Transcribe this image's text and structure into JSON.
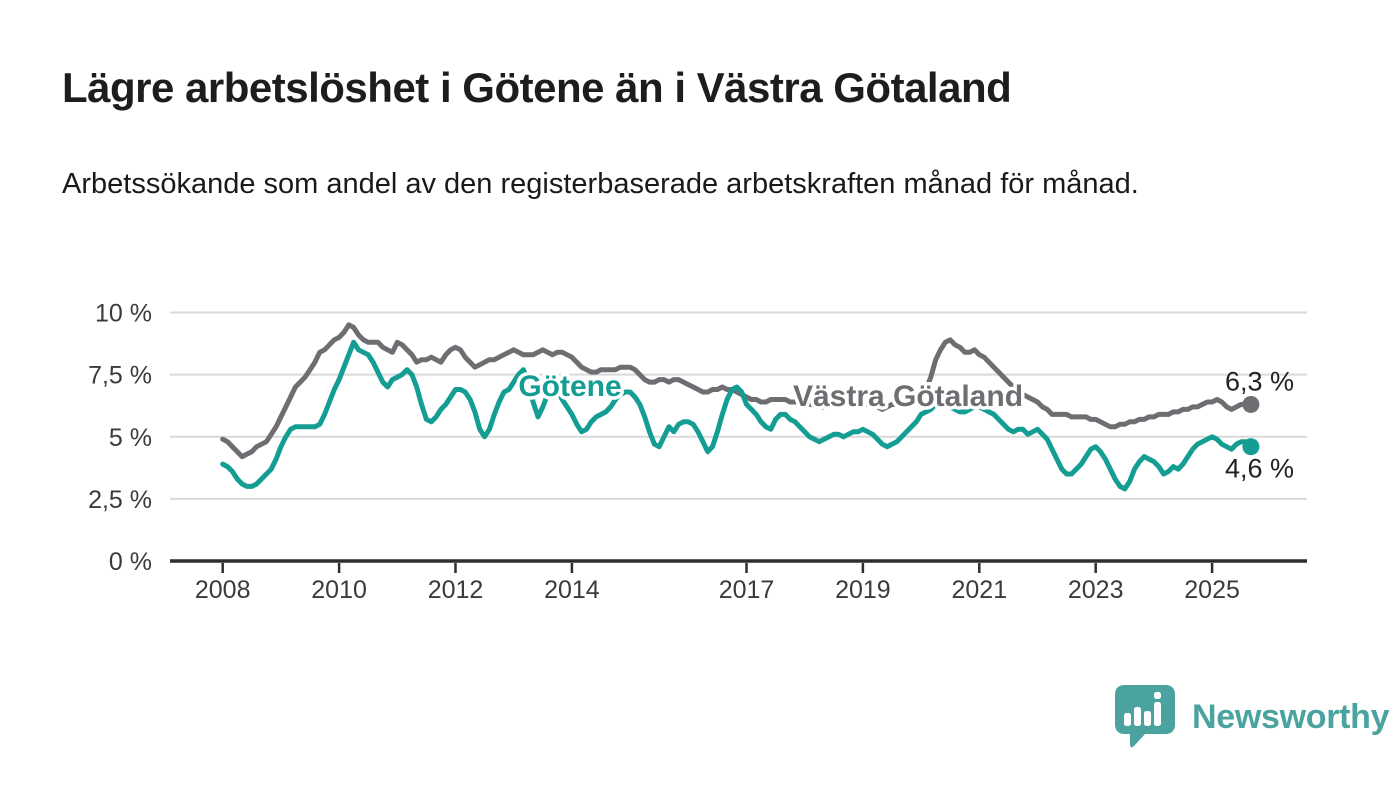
{
  "header": {
    "title": "Lägre arbetslöshet i Götene än i Västra Götaland",
    "subtitle": "Arbetssökande som andel av den registerbaserade arbetskraften månad för månad."
  },
  "chart_data": {
    "type": "line",
    "title": "",
    "xlabel": "",
    "ylabel": "",
    "x_start": "2008-01",
    "x_end": "2025-09",
    "x_frequency": "monthly",
    "ylim": [
      0,
      10.5
    ],
    "grid": "horizontal",
    "y_axis": {
      "ticks": [
        {
          "value": 10,
          "label": "10 %"
        },
        {
          "value": 7.5,
          "label": "7,5 %"
        },
        {
          "value": 5,
          "label": "5 %"
        },
        {
          "value": 2.5,
          "label": "2,5 %"
        },
        {
          "value": 0,
          "label": "0 %"
        }
      ]
    },
    "x_axis": {
      "tick_years": [
        2008,
        2010,
        2012,
        2014,
        2017,
        2019,
        2021,
        2023,
        2025
      ],
      "tick_labels": [
        "2008",
        "2010",
        "2012",
        "2014",
        "2017",
        "2019",
        "2021",
        "2023",
        "2025"
      ]
    },
    "series": [
      {
        "name": "Västra Götaland",
        "color": "#6e6e72",
        "end_label": "6,3 %",
        "end_value": 6.3,
        "values": [
          4.9,
          4.8,
          4.6,
          4.4,
          4.2,
          4.3,
          4.4,
          4.6,
          4.7,
          4.8,
          5.1,
          5.4,
          5.8,
          6.2,
          6.6,
          7.0,
          7.2,
          7.4,
          7.7,
          8.0,
          8.4,
          8.5,
          8.7,
          8.9,
          9.0,
          9.2,
          9.5,
          9.4,
          9.1,
          8.9,
          8.8,
          8.8,
          8.8,
          8.6,
          8.5,
          8.4,
          8.8,
          8.7,
          8.5,
          8.3,
          8.0,
          8.1,
          8.1,
          8.2,
          8.1,
          8.0,
          8.3,
          8.5,
          8.6,
          8.5,
          8.2,
          8.0,
          7.8,
          7.9,
          8.0,
          8.1,
          8.1,
          8.2,
          8.3,
          8.4,
          8.5,
          8.4,
          8.3,
          8.3,
          8.3,
          8.4,
          8.5,
          8.4,
          8.3,
          8.4,
          8.4,
          8.3,
          8.2,
          8.0,
          7.8,
          7.7,
          7.6,
          7.6,
          7.7,
          7.7,
          7.7,
          7.7,
          7.8,
          7.8,
          7.8,
          7.7,
          7.5,
          7.3,
          7.2,
          7.2,
          7.3,
          7.3,
          7.2,
          7.3,
          7.3,
          7.2,
          7.1,
          7.0,
          6.9,
          6.8,
          6.8,
          6.9,
          6.9,
          7.0,
          6.9,
          6.9,
          6.8,
          6.7,
          6.6,
          6.5,
          6.5,
          6.4,
          6.4,
          6.5,
          6.5,
          6.5,
          6.5,
          6.4,
          6.4,
          6.4,
          6.4,
          6.3,
          6.3,
          6.2,
          6.2,
          6.3,
          6.3,
          6.3,
          6.3,
          6.3,
          6.3,
          6.4,
          6.4,
          6.3,
          6.3,
          6.2,
          6.1,
          6.2,
          6.3,
          6.3,
          6.4,
          6.4,
          6.5,
          6.6,
          6.7,
          6.9,
          7.4,
          8.1,
          8.5,
          8.8,
          8.9,
          8.7,
          8.6,
          8.4,
          8.4,
          8.5,
          8.3,
          8.2,
          8.0,
          7.8,
          7.6,
          7.4,
          7.2,
          7.0,
          6.9,
          6.7,
          6.6,
          6.5,
          6.4,
          6.2,
          6.1,
          5.9,
          5.9,
          5.9,
          5.9,
          5.8,
          5.8,
          5.8,
          5.8,
          5.7,
          5.7,
          5.6,
          5.5,
          5.4,
          5.4,
          5.5,
          5.5,
          5.6,
          5.6,
          5.7,
          5.7,
          5.8,
          5.8,
          5.9,
          5.9,
          5.9,
          6.0,
          6.0,
          6.1,
          6.1,
          6.2,
          6.2,
          6.3,
          6.4,
          6.4,
          6.5,
          6.4,
          6.2,
          6.1,
          6.2,
          6.3,
          6.3,
          6.3
        ]
      },
      {
        "name": "Götene",
        "color": "#149d92",
        "end_label": "4,6 %",
        "end_value": 4.6,
        "values": [
          3.9,
          3.8,
          3.6,
          3.3,
          3.1,
          3.0,
          3.0,
          3.1,
          3.3,
          3.5,
          3.7,
          4.1,
          4.6,
          5.0,
          5.3,
          5.4,
          5.4,
          5.4,
          5.4,
          5.4,
          5.5,
          5.9,
          6.4,
          6.9,
          7.3,
          7.8,
          8.3,
          8.8,
          8.5,
          8.4,
          8.3,
          8.0,
          7.6,
          7.2,
          7.0,
          7.3,
          7.4,
          7.5,
          7.7,
          7.5,
          7.0,
          6.3,
          5.7,
          5.6,
          5.8,
          6.1,
          6.3,
          6.6,
          6.9,
          6.9,
          6.8,
          6.5,
          6.0,
          5.3,
          5.0,
          5.3,
          5.9,
          6.4,
          6.8,
          6.9,
          7.2,
          7.5,
          7.7,
          7.2,
          6.4,
          5.8,
          6.2,
          6.7,
          7.0,
          6.9,
          6.5,
          6.2,
          5.9,
          5.5,
          5.2,
          5.3,
          5.6,
          5.8,
          5.9,
          6.0,
          6.2,
          6.5,
          6.7,
          6.8,
          6.8,
          6.6,
          6.3,
          5.8,
          5.2,
          4.7,
          4.6,
          5.0,
          5.4,
          5.2,
          5.5,
          5.6,
          5.6,
          5.5,
          5.2,
          4.8,
          4.4,
          4.6,
          5.2,
          5.9,
          6.5,
          6.9,
          7.0,
          6.8,
          6.3,
          6.1,
          5.9,
          5.6,
          5.4,
          5.3,
          5.7,
          5.9,
          5.9,
          5.7,
          5.6,
          5.4,
          5.2,
          5.0,
          4.9,
          4.8,
          4.9,
          5.0,
          5.1,
          5.1,
          5.0,
          5.1,
          5.2,
          5.2,
          5.3,
          5.2,
          5.1,
          4.9,
          4.7,
          4.6,
          4.7,
          4.8,
          5.0,
          5.2,
          5.4,
          5.6,
          5.9,
          6.0,
          6.1,
          6.3,
          6.3,
          6.3,
          6.2,
          6.1,
          6.0,
          6.0,
          6.1,
          6.2,
          6.2,
          6.1,
          6.0,
          5.9,
          5.7,
          5.5,
          5.3,
          5.2,
          5.3,
          5.3,
          5.1,
          5.2,
          5.3,
          5.1,
          4.9,
          4.5,
          4.1,
          3.7,
          3.5,
          3.5,
          3.7,
          3.9,
          4.2,
          4.5,
          4.6,
          4.4,
          4.1,
          3.7,
          3.3,
          3.0,
          2.9,
          3.2,
          3.7,
          4.0,
          4.2,
          4.1,
          4.0,
          3.8,
          3.5,
          3.6,
          3.8,
          3.7,
          3.9,
          4.2,
          4.5,
          4.7,
          4.8,
          4.9,
          5.0,
          4.9,
          4.7,
          4.6,
          4.5,
          4.7,
          4.8,
          4.8,
          4.6
        ]
      }
    ],
    "colors": {
      "grid": "#d9d9d9",
      "axis": "#2f2f2f",
      "tick_text": "#3b3b3b",
      "value_label_text": "#222222"
    },
    "legend_position": "inline-labels"
  },
  "footer": {
    "brand": "Newsworthy",
    "brand_color": "#4aa39e",
    "brand_icon": "bar-chart-speech-bubble-icon"
  }
}
